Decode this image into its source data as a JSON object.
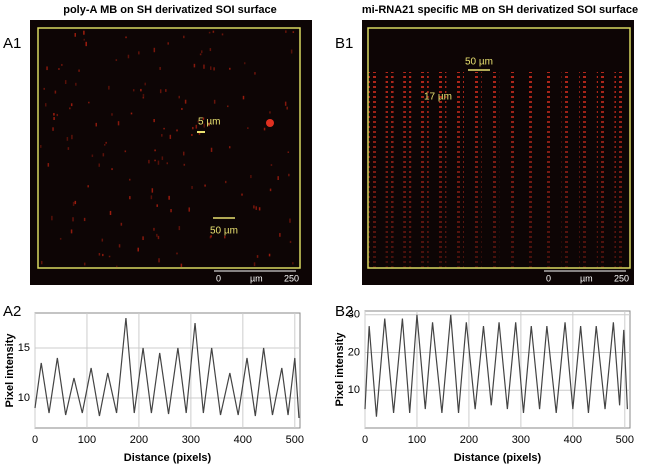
{
  "panels": [
    {
      "label": "A1",
      "title": "poly-A MB on SH derivatized SOI surface",
      "annotations": [
        "5 µm",
        "50 µm"
      ],
      "scalebar": [
        "0",
        "µm",
        "250"
      ]
    },
    {
      "label": "B1",
      "title": "mi-RNA21 specific MB on SH derivatized SOI surface",
      "annotations": [
        "50 µm",
        "17 µm"
      ],
      "scalebar": [
        "0",
        "µm",
        "250"
      ]
    }
  ],
  "chart_data": [
    {
      "type": "line",
      "label": "A2",
      "xlabel": "Distance (pixels)",
      "ylabel": "Pixel intensity",
      "color": "#444444",
      "grid": true,
      "xlim": [
        0,
        510
      ],
      "ylim": [
        7,
        18.5
      ],
      "xticks": [
        0,
        100,
        200,
        300,
        400,
        500
      ],
      "yticks": [
        10,
        15
      ],
      "x": [
        0,
        12,
        27,
        43,
        59,
        75,
        91,
        108,
        124,
        140,
        157,
        175,
        191,
        208,
        224,
        240,
        257,
        275,
        291,
        308,
        324,
        340,
        357,
        375,
        391,
        408,
        424,
        440,
        457,
        475,
        487,
        500,
        508
      ],
      "values": [
        9,
        13.5,
        8.5,
        14,
        8.3,
        12,
        8.5,
        13,
        8.2,
        12.5,
        8.5,
        18,
        8.5,
        15,
        8.5,
        14.5,
        8.4,
        15,
        8.5,
        17.5,
        8.5,
        15,
        8.3,
        12.5,
        8.3,
        14,
        8.2,
        15,
        8.3,
        13,
        8.3,
        14,
        8
      ]
    },
    {
      "type": "line",
      "label": "B2",
      "xlabel": "Distance (pixels)",
      "ylabel": "Pixel intensity",
      "color": "#444444",
      "grid": true,
      "xlim": [
        0,
        510
      ],
      "ylim": [
        0,
        31
      ],
      "xticks": [
        0,
        100,
        200,
        300,
        400,
        500
      ],
      "yticks": [
        10,
        20,
        30
      ],
      "x": [
        0,
        8,
        22,
        38,
        55,
        72,
        86,
        100,
        116,
        130,
        148,
        165,
        180,
        195,
        212,
        228,
        243,
        258,
        274,
        290,
        305,
        320,
        336,
        350,
        368,
        385,
        400,
        415,
        430,
        445,
        462,
        478,
        490,
        498,
        505
      ],
      "values": [
        5,
        27,
        3,
        29,
        4,
        29,
        4,
        30,
        5,
        28,
        4,
        30,
        4,
        28,
        5,
        27,
        6,
        28,
        5,
        28,
        4,
        27,
        5,
        27,
        4,
        28,
        5,
        27,
        4,
        27,
        5,
        28,
        6,
        26,
        5
      ]
    }
  ]
}
